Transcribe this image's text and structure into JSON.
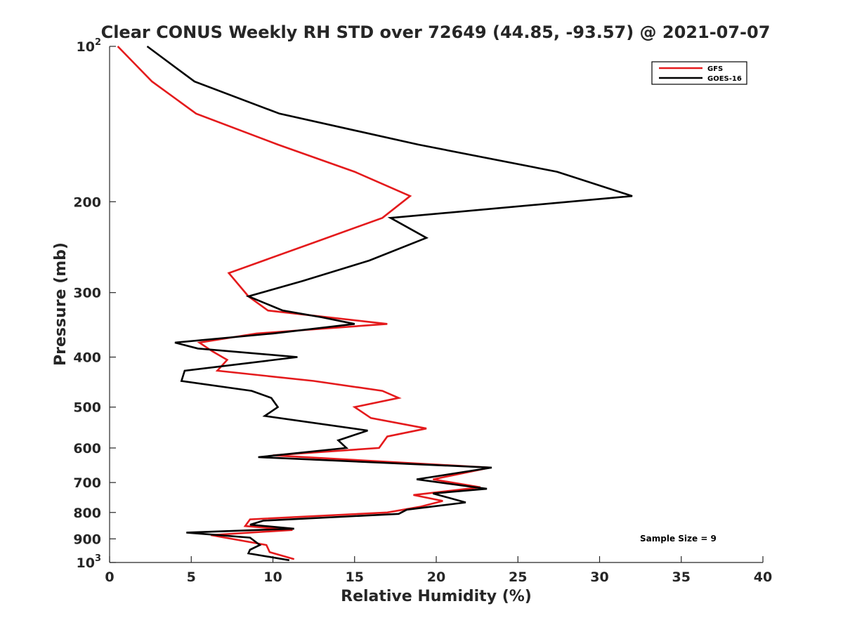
{
  "chart_data": {
    "type": "line",
    "title": "Clear CONUS Weekly RH STD over 72649 (44.85, -93.57) @ 2021-07-07",
    "xlabel": "Relative Humidity (%)",
    "ylabel": "Pressure (mb)",
    "xlim": [
      0,
      40
    ],
    "ylim": [
      100,
      1000
    ],
    "yscale": "log",
    "y_reversed": true,
    "grid": false,
    "legend_position": "top-right",
    "x_ticks": [
      0,
      5,
      10,
      15,
      20,
      25,
      30,
      35,
      40
    ],
    "x_tick_labels": [
      "0",
      "5",
      "10",
      "15",
      "20",
      "25",
      "30",
      "35",
      "40"
    ],
    "y_ticks": [
      100,
      200,
      300,
      400,
      500,
      600,
      700,
      800,
      900,
      1000
    ],
    "y_tick_labels": [
      {
        "base": "10",
        "exp": "2"
      },
      {
        "base": "200",
        "exp": ""
      },
      {
        "base": "300",
        "exp": ""
      },
      {
        "base": "400",
        "exp": ""
      },
      {
        "base": "500",
        "exp": ""
      },
      {
        "base": "600",
        "exp": ""
      },
      {
        "base": "700",
        "exp": ""
      },
      {
        "base": "800",
        "exp": ""
      },
      {
        "base": "900",
        "exp": ""
      },
      {
        "base": "10",
        "exp": "3"
      }
    ],
    "annotation": "Sample Size = 9",
    "series": [
      {
        "name": "GFS",
        "color": "#e41a1c",
        "points": [
          [
            0.5,
            100
          ],
          [
            2.6,
            117
          ],
          [
            5.3,
            135
          ],
          [
            10.3,
            155
          ],
          [
            15.0,
            175
          ],
          [
            18.4,
            195
          ],
          [
            16.7,
            215
          ],
          [
            12.5,
            240
          ],
          [
            7.3,
            275
          ],
          [
            8.5,
            305
          ],
          [
            9.7,
            325
          ],
          [
            17.0,
            345
          ],
          [
            9.0,
            360
          ],
          [
            5.5,
            375
          ],
          [
            6.3,
            390
          ],
          [
            7.2,
            405
          ],
          [
            6.6,
            425
          ],
          [
            12.5,
            445
          ],
          [
            16.7,
            465
          ],
          [
            17.7,
            480
          ],
          [
            15.0,
            500
          ],
          [
            16.0,
            525
          ],
          [
            19.4,
            550
          ],
          [
            17.0,
            570
          ],
          [
            16.5,
            600
          ],
          [
            10.0,
            620
          ],
          [
            23.3,
            655
          ],
          [
            19.8,
            690
          ],
          [
            22.7,
            715
          ],
          [
            18.6,
            740
          ],
          [
            20.4,
            760
          ],
          [
            19.0,
            780
          ],
          [
            17.0,
            800
          ],
          [
            8.6,
            825
          ],
          [
            8.3,
            850
          ],
          [
            11.2,
            865
          ],
          [
            6.2,
            885
          ],
          [
            9.6,
            925
          ],
          [
            9.8,
            955
          ],
          [
            11.3,
            985
          ]
        ]
      },
      {
        "name": "GOES-16",
        "color": "#000000",
        "points": [
          [
            2.3,
            100
          ],
          [
            5.2,
            117
          ],
          [
            10.4,
            135
          ],
          [
            18.9,
            155
          ],
          [
            27.4,
            175
          ],
          [
            32.0,
            195
          ],
          [
            17.2,
            215
          ],
          [
            19.4,
            235
          ],
          [
            15.9,
            260
          ],
          [
            11.8,
            285
          ],
          [
            8.5,
            305
          ],
          [
            10.6,
            325
          ],
          [
            13.0,
            335
          ],
          [
            15.0,
            345
          ],
          [
            10.0,
            360
          ],
          [
            4.0,
            375
          ],
          [
            5.4,
            385
          ],
          [
            11.5,
            400
          ],
          [
            4.6,
            425
          ],
          [
            4.4,
            445
          ],
          [
            8.7,
            465
          ],
          [
            9.9,
            480
          ],
          [
            10.3,
            500
          ],
          [
            9.5,
            520
          ],
          [
            15.8,
            555
          ],
          [
            14.0,
            580
          ],
          [
            14.5,
            600
          ],
          [
            9.1,
            625
          ],
          [
            23.4,
            655
          ],
          [
            18.8,
            690
          ],
          [
            23.1,
            720
          ],
          [
            19.8,
            735
          ],
          [
            21.8,
            765
          ],
          [
            18.2,
            790
          ],
          [
            17.7,
            805
          ],
          [
            9.4,
            830
          ],
          [
            8.6,
            845
          ],
          [
            11.3,
            860
          ],
          [
            4.7,
            875
          ],
          [
            8.6,
            895
          ],
          [
            9.2,
            925
          ],
          [
            8.6,
            945
          ],
          [
            8.5,
            960
          ],
          [
            11.0,
            990
          ]
        ]
      }
    ]
  }
}
